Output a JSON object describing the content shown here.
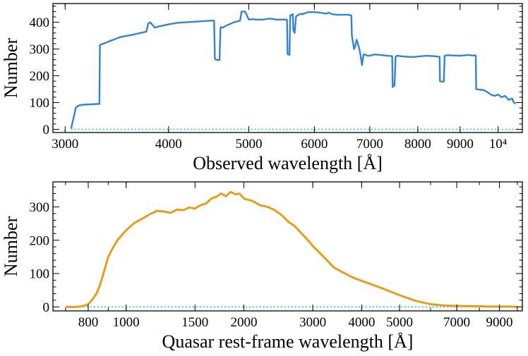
{
  "chart_data": [
    {
      "type": "line",
      "xscale": "log",
      "xlabel": "Observed wavelength [Å]",
      "ylabel": "Number",
      "xlim": [
        2900,
        10700
      ],
      "ylim": [
        -12,
        470
      ],
      "color": "#3383d0",
      "zero_line_color": "#2dd4c0",
      "xticks": [
        {
          "value": 3000,
          "label": "3000"
        },
        {
          "value": 4000,
          "label": "4000"
        },
        {
          "value": 5000,
          "label": "5000"
        },
        {
          "value": 6000,
          "label": "6000"
        },
        {
          "value": 7000,
          "label": "7000"
        },
        {
          "value": 8000,
          "label": "8000"
        },
        {
          "value": 9000,
          "label": "9000"
        },
        {
          "value": 10000,
          "label": "10⁴"
        }
      ],
      "yticks": [
        {
          "value": 0,
          "label": "0"
        },
        {
          "value": 100,
          "label": "100"
        },
        {
          "value": 200,
          "label": "200"
        },
        {
          "value": 300,
          "label": "300"
        },
        {
          "value": 400,
          "label": "400"
        }
      ],
      "x": [
        3050,
        3070,
        3090,
        3110,
        3150,
        3200,
        3250,
        3300,
        3305,
        3320,
        3350,
        3400,
        3500,
        3600,
        3700,
        3760,
        3780,
        3800,
        3850,
        3900,
        4000,
        4100,
        4200,
        4300,
        4400,
        4500,
        4540,
        4550,
        4600,
        4610,
        4620,
        4625,
        4650,
        4700,
        4800,
        4880,
        4900,
        4950,
        5000,
        5050,
        5100,
        5200,
        5300,
        5400,
        5500,
        5560,
        5570,
        5600,
        5610,
        5650,
        5660,
        5680,
        5700,
        5720,
        5760,
        5780,
        5800,
        5900,
        6000,
        6100,
        6200,
        6250,
        6300,
        6400,
        6500,
        6600,
        6650,
        6660,
        6700,
        6720,
        6750,
        6800,
        6820,
        6850,
        6880,
        6900,
        6950,
        7000,
        7100,
        7200,
        7300,
        7400,
        7450,
        7460,
        7500,
        7520,
        7550,
        7600,
        7700,
        7800,
        7900,
        8000,
        8200,
        8400,
        8500,
        8510,
        8550,
        8600,
        8620,
        8650,
        8700,
        8800,
        9000,
        9200,
        9300,
        9400,
        9410,
        9500,
        9600,
        9700,
        9800,
        9900,
        10000,
        10100,
        10200,
        10300,
        10400,
        10450,
        10500
      ],
      "y": [
        3,
        40,
        80,
        88,
        92,
        93,
        94,
        95,
        315,
        318,
        322,
        330,
        345,
        352,
        360,
        365,
        395,
        400,
        380,
        385,
        392,
        398,
        400,
        402,
        404,
        406,
        406,
        262,
        258,
        260,
        370,
        382,
        380,
        388,
        400,
        406,
        440,
        440,
        410,
        412,
        410,
        410,
        414,
        410,
        410,
        410,
        280,
        278,
        425,
        430,
        370,
        360,
        420,
        425,
        430,
        432,
        430,
        438,
        438,
        436,
        432,
        436,
        430,
        428,
        428,
        428,
        425,
        350,
        300,
        310,
        335,
        300,
        280,
        240,
        280,
        280,
        275,
        275,
        280,
        278,
        276,
        274,
        274,
        158,
        165,
        270,
        275,
        274,
        272,
        271,
        270,
        272,
        275,
        273,
        271,
        180,
        178,
        178,
        275,
        276,
        277,
        276,
        275,
        278,
        276,
        276,
        150,
        148,
        147,
        140,
        130,
        125,
        130,
        120,
        125,
        110,
        115,
        100,
        95
      ]
    },
    {
      "type": "line",
      "xscale": "log",
      "xlabel": "Quasar rest-frame wavelength [Å]",
      "ylabel": "Number",
      "xlim": [
        650,
        10300
      ],
      "ylim": [
        -12,
        375
      ],
      "color": "#e89c1c",
      "zero_line_color": "#2dd4c0",
      "xticks": [
        {
          "value": 800,
          "label": "800"
        },
        {
          "value": 1000,
          "label": "1000"
        },
        {
          "value": 1500,
          "label": "1500"
        },
        {
          "value": 2000,
          "label": "2000"
        },
        {
          "value": 3000,
          "label": "3000"
        },
        {
          "value": 4000,
          "label": "4000"
        },
        {
          "value": 5000,
          "label": "5000"
        },
        {
          "value": 7000,
          "label": "7000"
        },
        {
          "value": 9000,
          "label": "9000"
        }
      ],
      "yticks": [
        {
          "value": 0,
          "label": "0"
        },
        {
          "value": 100,
          "label": "100"
        },
        {
          "value": 200,
          "label": "200"
        },
        {
          "value": 300,
          "label": "300"
        }
      ],
      "x": [
        700,
        720,
        740,
        760,
        780,
        800,
        820,
        840,
        860,
        880,
        900,
        920,
        950,
        1000,
        1050,
        1100,
        1150,
        1200,
        1250,
        1300,
        1350,
        1400,
        1450,
        1500,
        1550,
        1600,
        1650,
        1700,
        1750,
        1800,
        1850,
        1900,
        1950,
        2000,
        2100,
        2200,
        2300,
        2400,
        2500,
        2600,
        2700,
        2800,
        2900,
        3000,
        3200,
        3400,
        3600,
        3800,
        4000,
        4300,
        4600,
        5000,
        5500,
        6000,
        6500,
        7000,
        7500,
        8000,
        8500,
        9000,
        9500,
        10000
      ],
      "y": [
        0,
        0,
        0,
        1,
        3,
        8,
        22,
        40,
        70,
        110,
        150,
        172,
        200,
        230,
        252,
        265,
        278,
        288,
        286,
        282,
        292,
        290,
        298,
        295,
        305,
        310,
        325,
        330,
        340,
        332,
        345,
        338,
        340,
        325,
        318,
        305,
        300,
        290,
        275,
        255,
        242,
        222,
        203,
        183,
        150,
        118,
        102,
        88,
        78,
        65,
        52,
        35,
        18,
        8,
        4,
        3,
        2,
        2,
        1,
        1,
        1,
        0
      ]
    }
  ]
}
